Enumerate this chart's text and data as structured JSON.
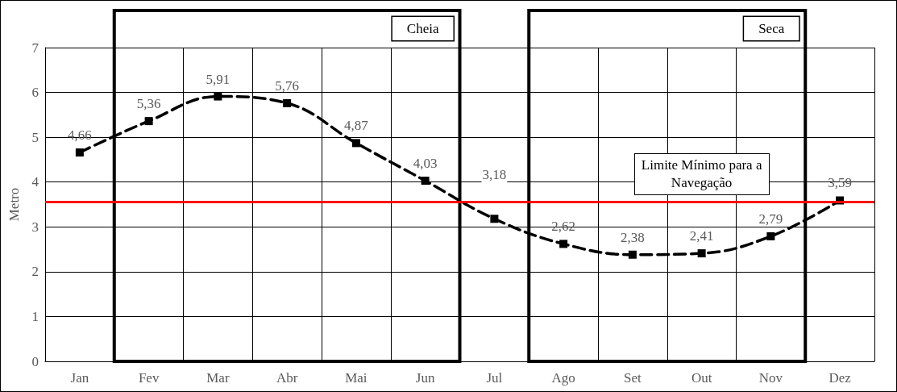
{
  "chart_data": {
    "type": "line",
    "ylabel": "Metro",
    "categories": [
      "Jan",
      "Fev",
      "Mar",
      "Abr",
      "Mai",
      "Jun",
      "Jul",
      "Ago",
      "Set",
      "Out",
      "Nov",
      "Dez"
    ],
    "series": [
      {
        "color": "#000000",
        "values": [
          4.66,
          5.36,
          5.91,
          5.76,
          4.87,
          4.03,
          3.18,
          2.62,
          2.38,
          2.41,
          2.79,
          3.59
        ],
        "value_labels": [
          "4,66",
          "5,36",
          "5,91",
          "5,76",
          "4,87",
          "4,03",
          "3,18",
          "2,62",
          "2,38",
          "2,41",
          "2,79",
          "3,59"
        ]
      }
    ],
    "ylim": [
      0,
      7
    ],
    "yticks": [
      0,
      1,
      2,
      3,
      4,
      5,
      6,
      7
    ],
    "grid": true,
    "marker": "square",
    "line_style": "dashed",
    "ref_lines": [
      {
        "axis": "y",
        "value": 3.55,
        "label": "Limite Mínimo para a Navegação",
        "color": "#ff0000"
      }
    ],
    "bands": [
      {
        "axis": "x",
        "from": "Fev",
        "to": "Jun",
        "label": "Cheia",
        "color": "#ffffff"
      },
      {
        "axis": "x",
        "from": "Ago",
        "to": "Nov",
        "label": "Seca",
        "color": "#ffffff"
      }
    ]
  }
}
